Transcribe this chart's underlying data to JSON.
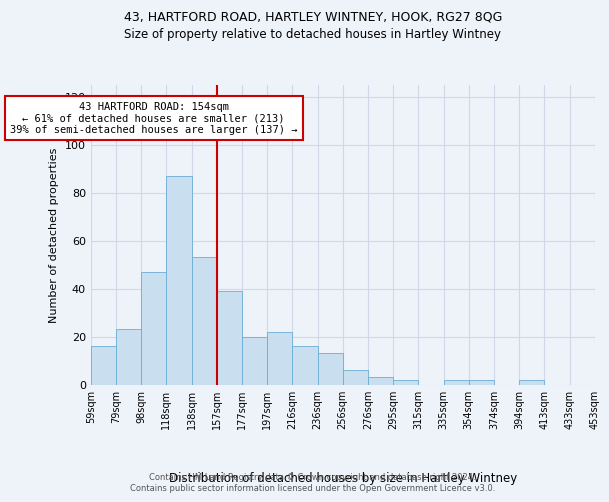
{
  "title1": "43, HARTFORD ROAD, HARTLEY WINTNEY, HOOK, RG27 8QG",
  "title2": "Size of property relative to detached houses in Hartley Wintney",
  "xlabel": "Distribution of detached houses by size in Hartley Wintney",
  "ylabel": "Number of detached properties",
  "bar_values": [
    16,
    23,
    47,
    87,
    53,
    39,
    20,
    22,
    16,
    13,
    6,
    3,
    2,
    0,
    2,
    2,
    0,
    2
  ],
  "bin_labels": [
    "59sqm",
    "79sqm",
    "98sqm",
    "118sqm",
    "138sqm",
    "157sqm",
    "177sqm",
    "197sqm",
    "216sqm",
    "236sqm",
    "256sqm",
    "276sqm",
    "295sqm",
    "315sqm",
    "335sqm",
    "354sqm",
    "374sqm",
    "394sqm",
    "413sqm",
    "433sqm",
    "453sqm"
  ],
  "bar_color": "#c9dff0",
  "bar_edge_color": "#6aaed6",
  "grid_color": "#d0d8e8",
  "background_color": "#eef2f9",
  "annotation_line1": "43 HARTFORD ROAD: 154sqm",
  "annotation_line2": "← 61% of detached houses are smaller (213)",
  "annotation_line3": "39% of semi-detached houses are larger (137) →",
  "annotation_box_color": "#ffffff",
  "annotation_box_edge": "#cc0000",
  "vline_color": "#cc0000",
  "ylim": [
    0,
    125
  ],
  "yticks": [
    0,
    20,
    40,
    60,
    80,
    100,
    120
  ],
  "footer1": "Contains HM Land Registry data © Crown copyright and database right 2024.",
  "footer2": "Contains public sector information licensed under the Open Government Licence v3.0."
}
